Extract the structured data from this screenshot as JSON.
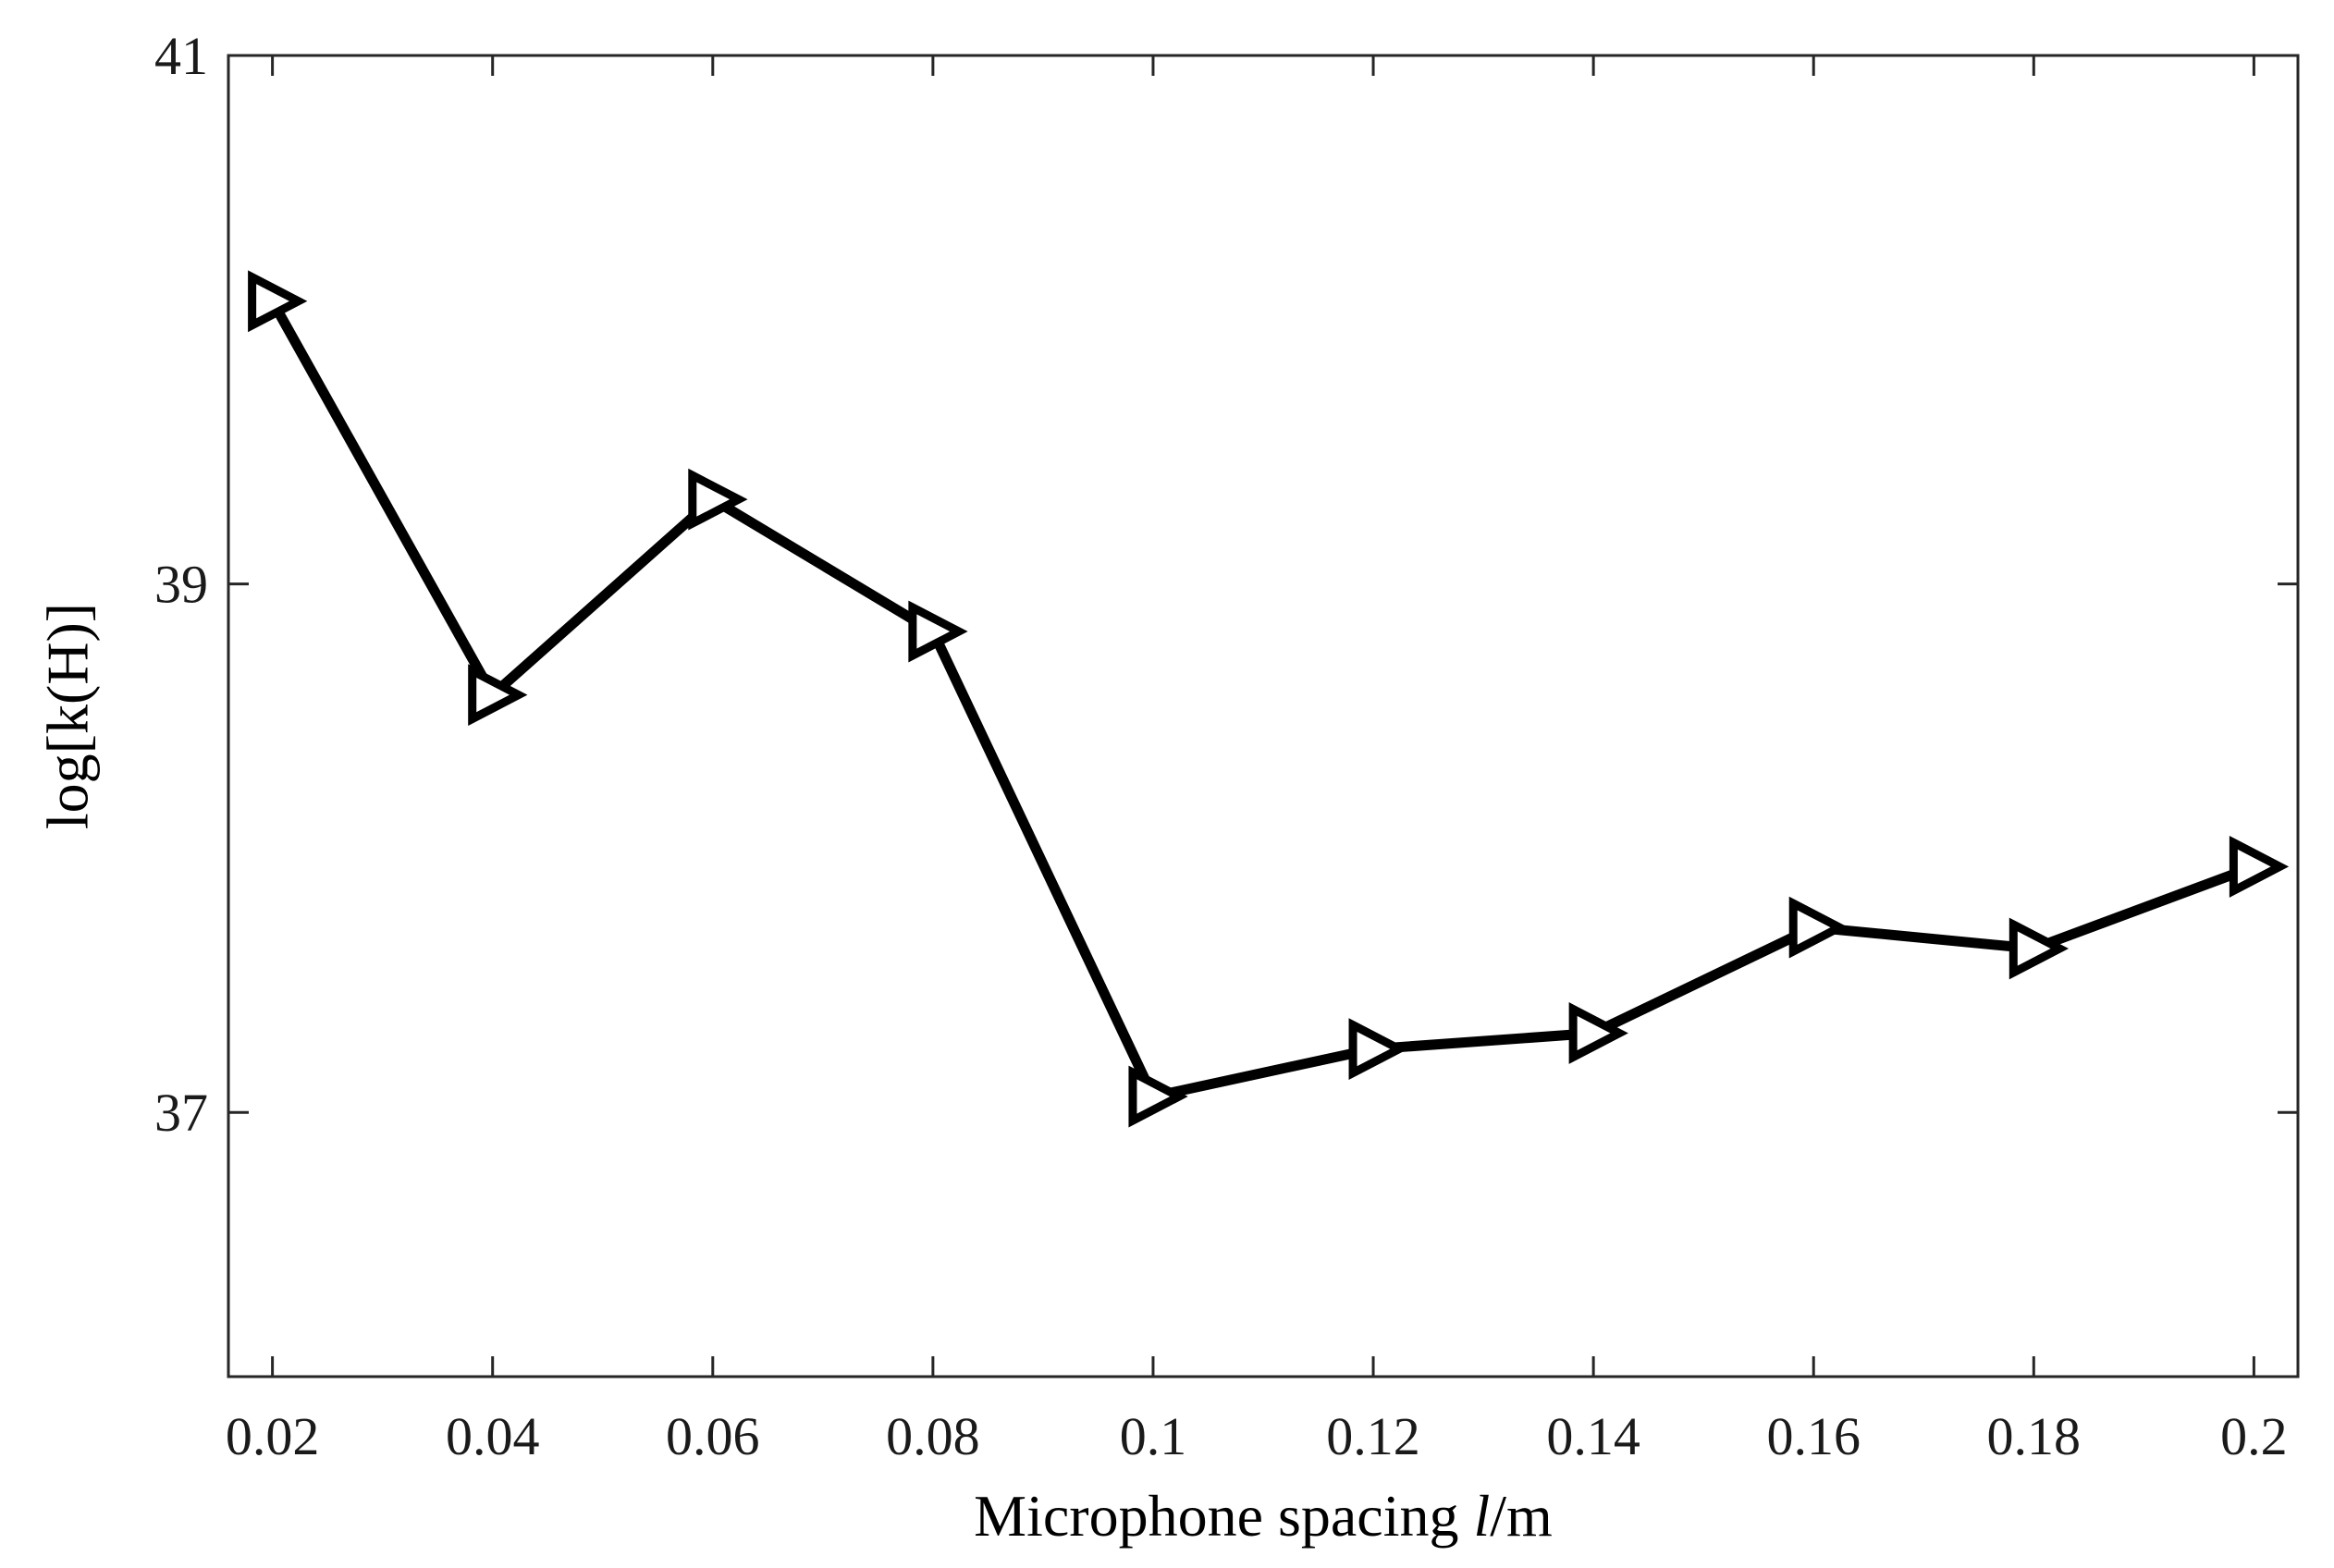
{
  "chart_data": {
    "type": "line",
    "title": "",
    "xlabel": {
      "prefix": "Microphone spacing ",
      "italic": "l",
      "suffix": "/m"
    },
    "ylabel": "log[k(H)]",
    "x": [
      0.02,
      0.04,
      0.06,
      0.08,
      0.1,
      0.12,
      0.14,
      0.16,
      0.18,
      0.2
    ],
    "x_tick_labels": [
      "0.02",
      "0.04",
      "0.06",
      "0.08",
      "0.1",
      "0.12",
      "0.14",
      "0.16",
      "0.18",
      "0.2"
    ],
    "y_ticks": [
      37,
      39,
      41
    ],
    "y_tick_labels": [
      "37",
      "39",
      "41"
    ],
    "xlim": [
      0.016,
      0.204
    ],
    "ylim": [
      36.0,
      41.0
    ],
    "grid": false,
    "legend": "none",
    "series": [
      {
        "values": [
          40.07,
          38.58,
          39.32,
          38.82,
          37.06,
          37.24,
          37.3,
          37.7,
          37.62,
          37.93
        ],
        "color": "#000000",
        "marker": "right-pointing-triangle",
        "marker_fill": "none"
      }
    ]
  }
}
